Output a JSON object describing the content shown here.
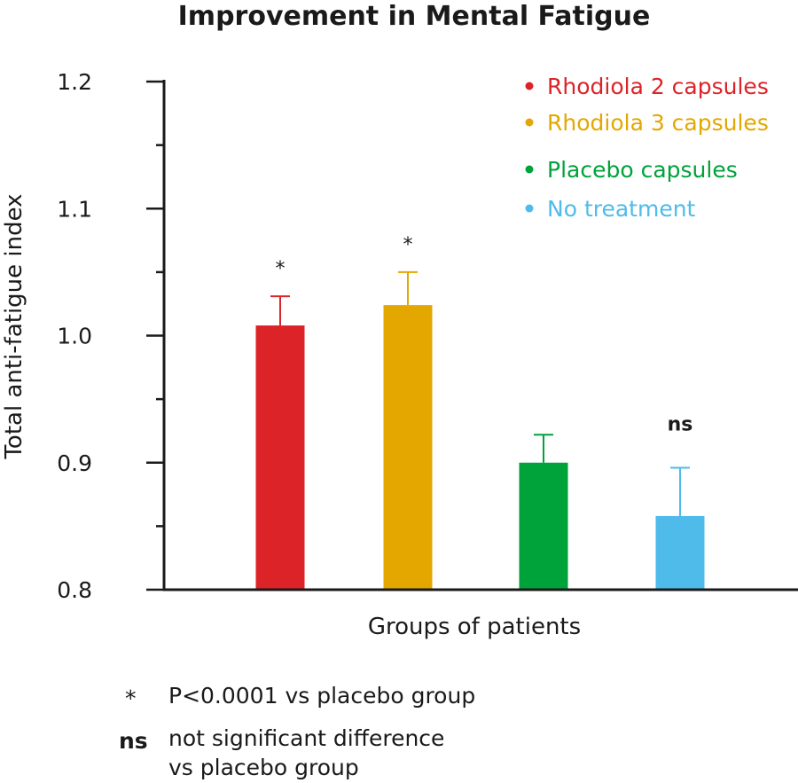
{
  "chart_data": {
    "type": "bar",
    "title": "Improvement in Mental Fatigue",
    "xlabel": "Groups of patients",
    "ylabel": "Total anti-fatigue index",
    "ylim": [
      0.8,
      1.2
    ],
    "yticks": [
      "0.8",
      "0.9",
      "1.0",
      "1.1",
      "1.2"
    ],
    "categories": [
      "Rhodiola 2 capsules",
      "Rhodiola 3 capsules",
      "Placebo capsules",
      "No treatment"
    ],
    "values": [
      1.008,
      1.024,
      0.9,
      0.858
    ],
    "error": [
      0.023,
      0.026,
      0.022,
      0.038
    ],
    "colors": [
      "#dc2328",
      "#e3a700",
      "#00a23a",
      "#4fbbea"
    ],
    "significance": [
      "*",
      "*",
      "",
      "ns"
    ],
    "legend": {
      "placement": "top-right",
      "items": [
        {
          "label": "Rhodiola 2 capsules",
          "color": "#dc2328"
        },
        {
          "label": "Rhodiola 3 capsules",
          "color": "#e3a700"
        },
        {
          "label": "Placebo capsules",
          "color": "#00a23a"
        },
        {
          "label": "No treatment",
          "color": "#4fbbea"
        }
      ]
    },
    "notes": [
      {
        "symbol": "*",
        "text": "P<0.0001 vs placebo group"
      },
      {
        "symbol": "ns",
        "text_line1": "not significant difference",
        "text_line2": "vs placebo group"
      }
    ]
  }
}
